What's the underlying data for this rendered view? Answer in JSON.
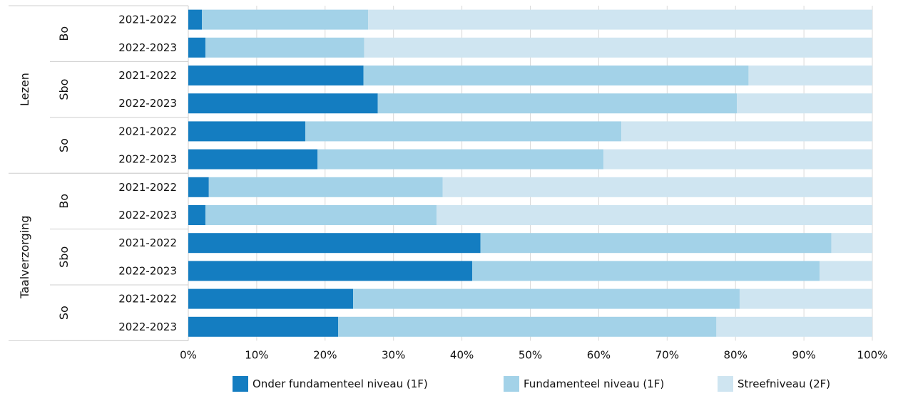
{
  "chart_data": {
    "type": "bar",
    "orientation": "horizontal",
    "stacked": true,
    "x_range": [
      0,
      100
    ],
    "x_tick_labels": [
      "0%",
      "10%",
      "20%",
      "30%",
      "40%",
      "50%",
      "60%",
      "70%",
      "80%",
      "90%",
      "100%"
    ],
    "grid": true,
    "legend_position": "bottom",
    "series_names": [
      "Onder fundamenteel niveau (1F)",
      "Fundamenteel niveau (1F)",
      "Streefniveau (2F)"
    ],
    "series_colors": [
      "#147dc1",
      "#a3d2e8",
      "#cfe5f1"
    ],
    "groups": [
      {
        "name": "Lezen",
        "subgroups": [
          {
            "name": "Bo",
            "rows": [
              {
                "label": "2021-2022",
                "values": [
                  2,
                  24.3,
                  73.7
                ]
              },
              {
                "label": "2022-2023",
                "values": [
                  2.5,
                  23.2,
                  74.3
                ]
              }
            ]
          },
          {
            "name": "Sbo",
            "rows": [
              {
                "label": "2021-2022",
                "values": [
                  25.6,
                  56.3,
                  18.1
                ]
              },
              {
                "label": "2022-2023",
                "values": [
                  27.7,
                  52.5,
                  19.8
                ]
              }
            ]
          },
          {
            "name": "So",
            "rows": [
              {
                "label": "2021-2022",
                "values": [
                  17.1,
                  46.2,
                  36.7
                ]
              },
              {
                "label": "2022-2023",
                "values": [
                  18.9,
                  41.8,
                  39.3
                ]
              }
            ]
          }
        ]
      },
      {
        "name": "Taalverzorging",
        "subgroups": [
          {
            "name": "Bo",
            "rows": [
              {
                "label": "2021-2022",
                "values": [
                  3,
                  34.2,
                  62.8
                ]
              },
              {
                "label": "2022-2023",
                "values": [
                  2.5,
                  33.8,
                  63.7
                ]
              }
            ]
          },
          {
            "name": "Sbo",
            "rows": [
              {
                "label": "2021-2022",
                "values": [
                  42.7,
                  51.3,
                  6
                ]
              },
              {
                "label": "2022-2023",
                "values": [
                  41.5,
                  50.8,
                  7.7
                ]
              }
            ]
          },
          {
            "name": "So",
            "rows": [
              {
                "label": "2021-2022",
                "values": [
                  24.1,
                  56.5,
                  19.4
                ]
              },
              {
                "label": "2022-2023",
                "values": [
                  21.9,
                  55.3,
                  22.8
                ]
              }
            ]
          }
        ]
      }
    ]
  }
}
